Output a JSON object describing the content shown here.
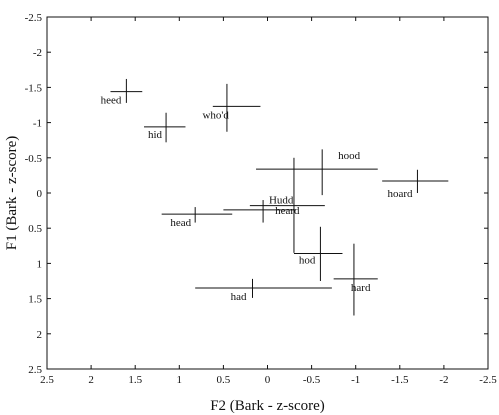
{
  "chart_data": {
    "type": "scatter",
    "title": "",
    "xlabel": "F2 (Bark - z-score)",
    "ylabel": "F1 (Bark - z-score)",
    "xlim": [
      2.5,
      -2.5
    ],
    "ylim": [
      -2.5,
      2.5
    ],
    "x_reversed": true,
    "y_reversed": true,
    "x_ticks": [
      "2.5",
      "2",
      "1.5",
      "1",
      "0.5",
      "0",
      "-0.5",
      "-1",
      "-1.5",
      "-2",
      "-2.5"
    ],
    "y_ticks": [
      "-2.5",
      "-2",
      "-1.5",
      "-1",
      "-0.5",
      "0",
      "0.5",
      "1",
      "1.5",
      "2",
      "2.5"
    ],
    "grid": false,
    "legend": "none",
    "error_bars": "crosshair (horizontal = F2 spread, vertical = F1 spread)",
    "points": [
      {
        "label": "heed",
        "x": 1.6,
        "y": -1.44,
        "x_min": 1.78,
        "x_max": 1.42,
        "y_min": -1.62,
        "y_max": -1.28
      },
      {
        "label": "hid",
        "x": 1.15,
        "y": -0.94,
        "x_min": 1.4,
        "x_max": 0.93,
        "y_min": -1.14,
        "y_max": -0.72
      },
      {
        "label": "who'd",
        "x": 0.46,
        "y": -1.23,
        "x_min": 0.62,
        "x_max": 0.08,
        "y_min": -1.55,
        "y_max": -0.87
      },
      {
        "label": "hood",
        "x": -0.62,
        "y": -0.34,
        "x_min": 0.13,
        "x_max": -1.25,
        "y_min": -0.62,
        "y_max": 0.03
      },
      {
        "label": "hoard",
        "x": -1.7,
        "y": -0.17,
        "x_min": -1.3,
        "x_max": -2.05,
        "y_min": -0.33,
        "y_max": 0.0
      },
      {
        "label": "Hudd",
        "x": -0.3,
        "y": 0.18,
        "x_min": 0.2,
        "x_max": -0.65,
        "y_min": -0.5,
        "y_max": 0.85
      },
      {
        "label": "heard",
        "x": 0.05,
        "y": 0.24,
        "x_min": 0.5,
        "x_max": -0.32,
        "y_min": 0.1,
        "y_max": 0.42
      },
      {
        "label": "head",
        "x": 0.82,
        "y": 0.3,
        "x_min": 1.2,
        "x_max": 0.4,
        "y_min": 0.2,
        "y_max": 0.42
      },
      {
        "label": "hod",
        "x": -0.6,
        "y": 0.86,
        "x_min": -0.3,
        "x_max": -0.85,
        "y_min": 0.48,
        "y_max": 1.25
      },
      {
        "label": "hard",
        "x": -0.98,
        "y": 1.22,
        "x_min": -0.75,
        "x_max": -1.25,
        "y_min": 0.72,
        "y_max": 1.74
      },
      {
        "label": "had",
        "x": 0.17,
        "y": 1.35,
        "x_min": 0.82,
        "x_max": -0.73,
        "y_min": 1.22,
        "y_max": 1.49
      }
    ]
  }
}
